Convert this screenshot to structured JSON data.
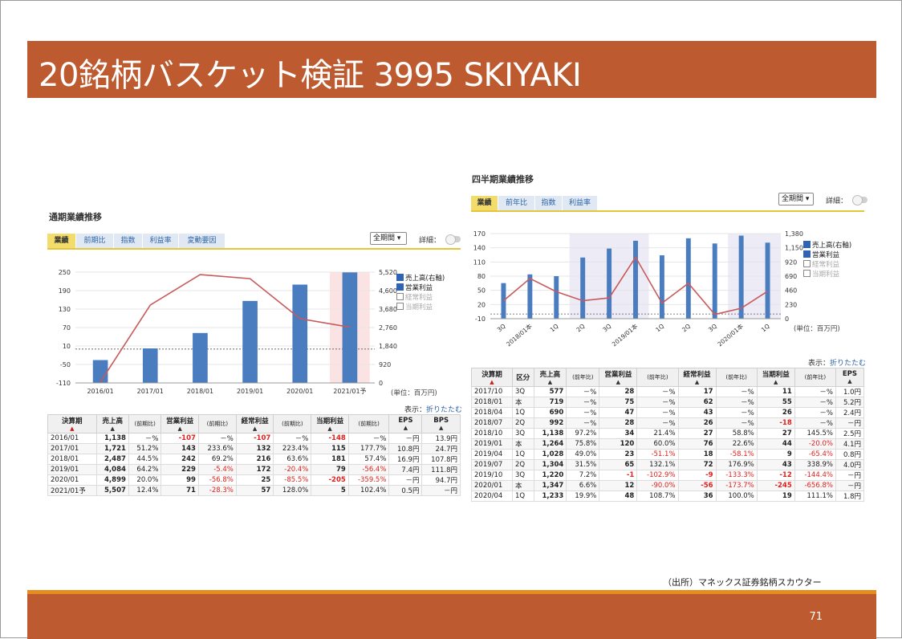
{
  "slide": {
    "title": "20銘柄バスケット検証 3995 SKIYAKI",
    "source": "（出所）マネックス証券銘柄スカウター",
    "page_number": "71"
  },
  "annual": {
    "heading": "通期業績推移",
    "tabs": [
      "業績",
      "前期比",
      "指数",
      "利益率",
      "変動要因"
    ],
    "period_select": "全期間 ▾",
    "detail_label": "詳細：",
    "legend": [
      "売上高(右軸)",
      "営業利益",
      "経常利益",
      "当期利益"
    ],
    "unit": "(単位：百万円)",
    "display_label": "表示：",
    "fold_link": "折りたたむ",
    "columns": [
      "決算期",
      "売上高",
      "(前期比)",
      "営業利益",
      "(前期比)",
      "経常利益",
      "(前期比)",
      "当期利益",
      "(前期比)",
      "EPS",
      "BPS"
    ],
    "rows": [
      [
        "2016/01",
        "1,138",
        "－%",
        "-107",
        "－%",
        "-107",
        "－%",
        "-148",
        "－%",
        "－円",
        "13.9円"
      ],
      [
        "2017/01",
        "1,721",
        "51.2%",
        "143",
        "233.6%",
        "132",
        "223.4%",
        "115",
        "177.7%",
        "10.8円",
        "24.7円"
      ],
      [
        "2018/01",
        "2,487",
        "44.5%",
        "242",
        "69.2%",
        "216",
        "63.6%",
        "181",
        "57.4%",
        "16.9円",
        "107.8円"
      ],
      [
        "2019/01",
        "4,084",
        "64.2%",
        "229",
        "-5.4%",
        "172",
        "-20.4%",
        "79",
        "-56.4%",
        "7.4円",
        "111.8円"
      ],
      [
        "2020/01",
        "4,899",
        "20.0%",
        "99",
        "-56.8%",
        "25",
        "-85.5%",
        "-205",
        "-359.5%",
        "－円",
        "94.7円"
      ],
      [
        "2021/01予",
        "5,507",
        "12.4%",
        "71",
        "-28.3%",
        "57",
        "128.0%",
        "5",
        "102.4%",
        "0.5円",
        "－円"
      ]
    ]
  },
  "quarterly": {
    "heading": "四半期業績推移",
    "tabs": [
      "業績",
      "前年比",
      "指数",
      "利益率"
    ],
    "period_select": "全期間 ▾",
    "detail_label": "詳細：",
    "legend": [
      "売上高(右軸)",
      "営業利益",
      "経常利益",
      "当期利益"
    ],
    "unit": "(単位：百万円)",
    "display_label": "表示：",
    "fold_link": "折りたたむ",
    "columns": [
      "決算期",
      "区分",
      "売上高",
      "(前年比)",
      "営業利益",
      "(前年比)",
      "経常利益",
      "(前年比)",
      "当期利益",
      "(前年比)",
      "EPS"
    ],
    "rows": [
      [
        "2017/10",
        "3Q",
        "577",
        "－%",
        "28",
        "－%",
        "17",
        "－%",
        "11",
        "－%",
        "1.0円"
      ],
      [
        "2018/01",
        "本",
        "719",
        "－%",
        "75",
        "－%",
        "62",
        "－%",
        "55",
        "－%",
        "5.2円"
      ],
      [
        "2018/04",
        "1Q",
        "690",
        "－%",
        "47",
        "－%",
        "43",
        "－%",
        "26",
        "－%",
        "2.4円"
      ],
      [
        "2018/07",
        "2Q",
        "992",
        "－%",
        "28",
        "－%",
        "26",
        "－%",
        "-18",
        "－%",
        "－円"
      ],
      [
        "2018/10",
        "3Q",
        "1,138",
        "97.2%",
        "34",
        "21.4%",
        "27",
        "58.8%",
        "27",
        "145.5%",
        "2.5円"
      ],
      [
        "2019/01",
        "本",
        "1,264",
        "75.8%",
        "120",
        "60.0%",
        "76",
        "22.6%",
        "44",
        "-20.0%",
        "4.1円"
      ],
      [
        "2019/04",
        "1Q",
        "1,028",
        "49.0%",
        "23",
        "-51.1%",
        "18",
        "-58.1%",
        "9",
        "-65.4%",
        "0.8円"
      ],
      [
        "2019/07",
        "2Q",
        "1,304",
        "31.5%",
        "65",
        "132.1%",
        "72",
        "176.9%",
        "43",
        "338.9%",
        "4.0円"
      ],
      [
        "2019/10",
        "3Q",
        "1,220",
        "7.2%",
        "-1",
        "-102.9%",
        "-9",
        "-133.3%",
        "-12",
        "-144.4%",
        "－円"
      ],
      [
        "2020/01",
        "本",
        "1,347",
        "6.6%",
        "12",
        "-90.0%",
        "-56",
        "-173.7%",
        "-245",
        "-656.8%",
        "－円"
      ],
      [
        "2020/04",
        "1Q",
        "1,233",
        "19.9%",
        "48",
        "108.7%",
        "36",
        "100.0%",
        "19",
        "111.1%",
        "1.8円"
      ]
    ]
  },
  "chart_data": [
    {
      "type": "bar",
      "title": "通期業績推移",
      "categories": [
        "2016/01",
        "2017/01",
        "2018/01",
        "2019/01",
        "2020/01",
        "2021/01予"
      ],
      "yticks_left": [
        "250",
        "190",
        "130",
        "70",
        "10",
        "-50",
        "-110"
      ],
      "yticks_right": [
        "5,520",
        "4,600",
        "3,680",
        "2,760",
        "1,840",
        "920",
        "0"
      ],
      "ylim_left": [
        -110,
        250
      ],
      "ylim_right": [
        0,
        5520
      ],
      "series": [
        {
          "name": "売上高(右軸)",
          "type": "bar",
          "axis": "right",
          "values": [
            1138,
            1721,
            2487,
            4084,
            4899,
            5507
          ]
        },
        {
          "name": "営業利益",
          "type": "line",
          "axis": "left",
          "values": [
            -107,
            143,
            242,
            229,
            99,
            71
          ]
        }
      ],
      "forecast_category": "2021/01予",
      "colors": {
        "bar": "#4a7cc0",
        "line": "#c85a5a",
        "forecast_band": "#fbe3e3"
      }
    },
    {
      "type": "bar",
      "title": "四半期業績推移",
      "categories": [
        "3Q",
        "2018/01本",
        "1Q",
        "2Q",
        "3Q",
        "2019/01本",
        "1Q",
        "2Q",
        "3Q",
        "2020/01本",
        "1Q"
      ],
      "yticks_left": [
        "170",
        "140",
        "110",
        "80",
        "50",
        "20",
        "-10"
      ],
      "yticks_right": [
        "1,380",
        "1,150",
        "920",
        "690",
        "460",
        "230",
        "0"
      ],
      "ylim_left": [
        -10,
        170
      ],
      "ylim_right": [
        0,
        1380
      ],
      "series": [
        {
          "name": "売上高(右軸)",
          "type": "bar",
          "axis": "right",
          "values": [
            577,
            719,
            690,
            992,
            1138,
            1264,
            1028,
            1304,
            1220,
            1347,
            1233
          ]
        },
        {
          "name": "営業利益",
          "type": "line",
          "axis": "left",
          "values": [
            28,
            75,
            47,
            28,
            34,
            120,
            23,
            65,
            -1,
            12,
            48
          ]
        }
      ],
      "colors": {
        "bar": "#4a7cc0",
        "line": "#c85a5a",
        "shade": "#ecebf6"
      }
    }
  ]
}
